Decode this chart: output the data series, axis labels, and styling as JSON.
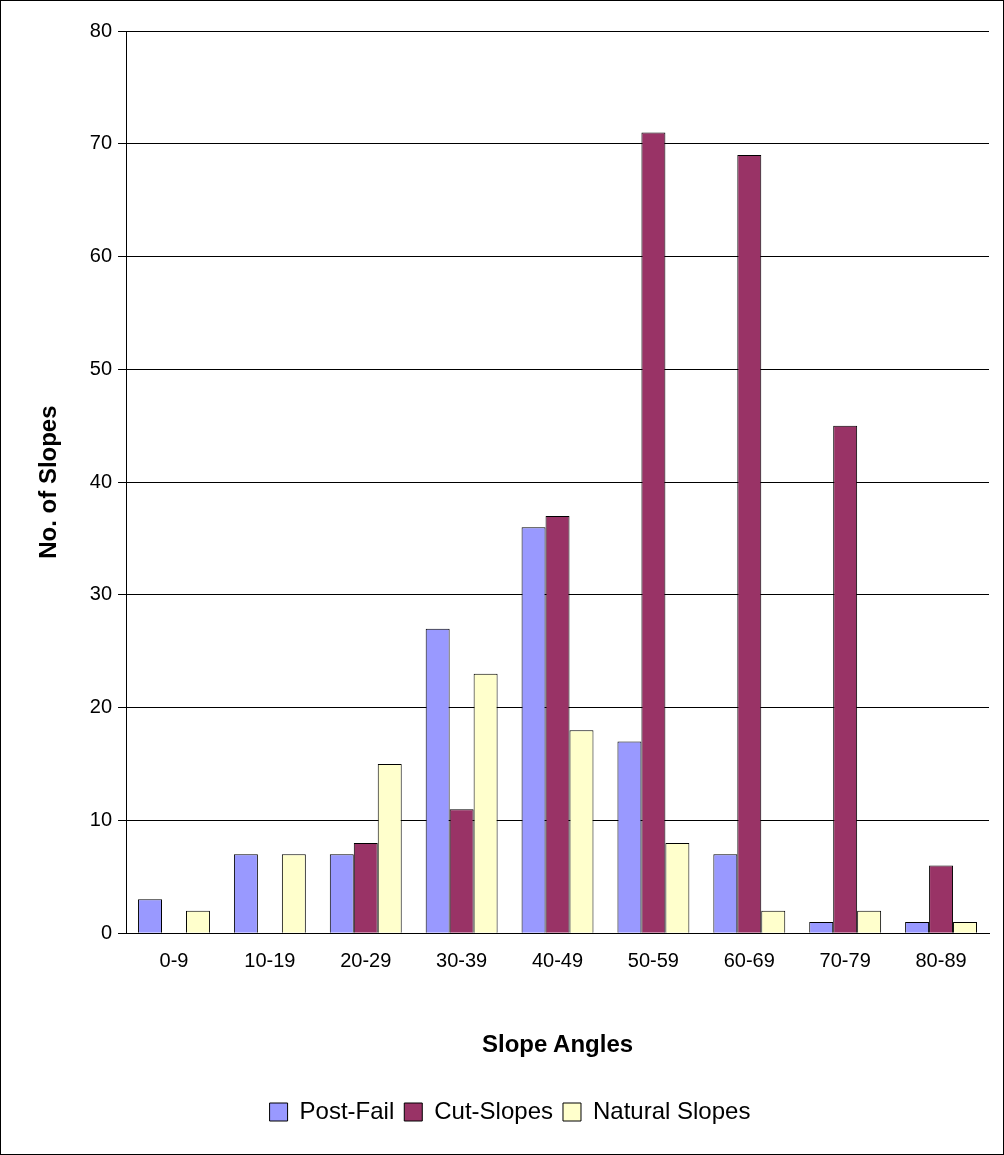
{
  "chart_data": {
    "type": "bar",
    "xlabel": "Slope Angles",
    "ylabel": "No. of Slopes",
    "categories": [
      "0-9",
      "10-19",
      "20-29",
      "30-39",
      "40-49",
      "50-59",
      "60-69",
      "70-79",
      "80-89"
    ],
    "series": [
      {
        "name": "Post-Fail",
        "color": "#9999ff",
        "values": [
          3,
          7,
          7,
          27,
          36,
          17,
          7,
          1,
          1
        ]
      },
      {
        "name": "Cut-Slopes",
        "color": "#993366",
        "values": [
          0,
          0,
          8,
          11,
          37,
          71,
          69,
          45,
          6
        ]
      },
      {
        "name": "Natural Slopes",
        "color": "#ffffcc",
        "values": [
          2,
          7,
          15,
          23,
          18,
          8,
          2,
          2,
          1
        ]
      }
    ],
    "ylim": [
      0,
      80
    ],
    "yticks": [
      0,
      10,
      20,
      30,
      40,
      50,
      60,
      70,
      80
    ],
    "grid": "y",
    "legend": "bottom"
  }
}
